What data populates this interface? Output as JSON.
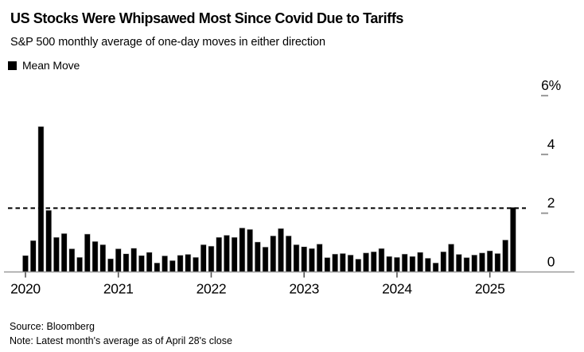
{
  "header": {
    "title": "US Stocks Were Whipsawed Most Since Covid Due to Tariffs",
    "subtitle": "S&P 500 monthly average of one-day moves in either direction"
  },
  "legend": {
    "items": [
      {
        "label": "Mean Move",
        "swatch_color": "#000000"
      }
    ]
  },
  "footer": {
    "source": "Source: Bloomberg",
    "note": "Note: Latest month's average as of April 28's close"
  },
  "chart_data": {
    "type": "bar",
    "title": "US Stocks Were Whipsawed Most Since Covid Due to Tariffs",
    "subtitle": "S&P 500 monthly average of one-day moves in either direction",
    "unit": "%",
    "xlabel": "",
    "ylabel": "",
    "ylim": [
      0,
      6.5
    ],
    "grid": false,
    "legend_position": "top-left",
    "bar_color": "#000000",
    "axis_color": "#999999",
    "tick_color": "#555555",
    "dashed_line_value": 2.17,
    "dashed_line_color": "#000000",
    "x": [
      "2020-01",
      "2020-02",
      "2020-03",
      "2020-04",
      "2020-05",
      "2020-06",
      "2020-07",
      "2020-08",
      "2020-09",
      "2020-10",
      "2020-11",
      "2020-12",
      "2021-01",
      "2021-02",
      "2021-03",
      "2021-04",
      "2021-05",
      "2021-06",
      "2021-07",
      "2021-08",
      "2021-09",
      "2021-10",
      "2021-11",
      "2021-12",
      "2022-01",
      "2022-02",
      "2022-03",
      "2022-04",
      "2022-05",
      "2022-06",
      "2022-07",
      "2022-08",
      "2022-09",
      "2022-10",
      "2022-11",
      "2022-12",
      "2023-01",
      "2023-02",
      "2023-03",
      "2023-04",
      "2023-05",
      "2023-06",
      "2023-07",
      "2023-08",
      "2023-09",
      "2023-10",
      "2023-11",
      "2023-12",
      "2024-01",
      "2024-02",
      "2024-03",
      "2024-04",
      "2024-05",
      "2024-06",
      "2024-07",
      "2024-08",
      "2024-09",
      "2024-10",
      "2024-11",
      "2024-12",
      "2025-01",
      "2025-02",
      "2025-03",
      "2025-04"
    ],
    "series": [
      {
        "name": "Mean Move",
        "values": [
          0.56,
          1.07,
          4.95,
          2.1,
          1.18,
          1.31,
          0.79,
          0.5,
          1.29,
          1.04,
          0.93,
          0.45,
          0.79,
          0.62,
          0.81,
          0.56,
          0.67,
          0.31,
          0.55,
          0.39,
          0.57,
          0.6,
          0.5,
          0.93,
          0.88,
          1.18,
          1.25,
          1.18,
          1.5,
          1.45,
          1.02,
          0.85,
          1.23,
          1.48,
          1.23,
          0.93,
          0.86,
          0.8,
          0.95,
          0.49,
          0.61,
          0.63,
          0.58,
          0.44,
          0.65,
          0.69,
          0.8,
          0.53,
          0.5,
          0.61,
          0.53,
          0.67,
          0.47,
          0.31,
          0.69,
          0.95,
          0.6,
          0.49,
          0.58,
          0.65,
          0.72,
          0.63,
          1.09,
          2.2
        ]
      }
    ],
    "yticks": [
      {
        "value": 0,
        "label": "0"
      },
      {
        "value": 2,
        "label": "2"
      },
      {
        "value": 4,
        "label": "4"
      },
      {
        "value": 6,
        "label": "6%"
      }
    ],
    "xticks": [
      {
        "label": "2020",
        "month_index": 0
      },
      {
        "label": "2021",
        "month_index": 12
      },
      {
        "label": "2022",
        "month_index": 24
      },
      {
        "label": "2023",
        "month_index": 36
      },
      {
        "label": "2024",
        "month_index": 48
      },
      {
        "label": "2025",
        "month_index": 60
      }
    ]
  }
}
